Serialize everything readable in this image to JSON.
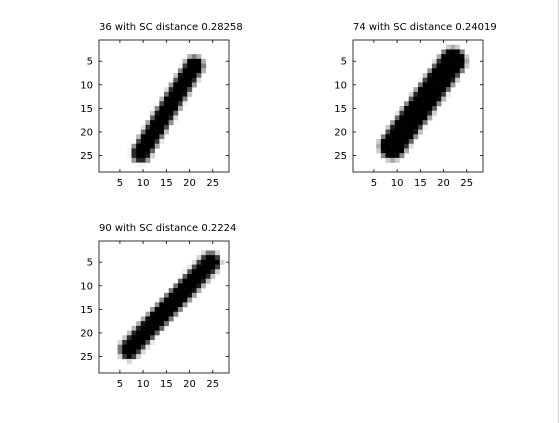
{
  "chart_data": [
    {
      "type": "heatmap",
      "title": "36 with SC distance 0.28258",
      "xlim": [
        0.5,
        28.5
      ],
      "ylim": [
        0.5,
        28.5
      ],
      "xticks": [
        5,
        10,
        15,
        20,
        25
      ],
      "yticks": [
        5,
        10,
        15,
        20,
        25
      ],
      "grid": false,
      "colormap": "gray-inverted",
      "stroke": {
        "start": [
          9.5,
          24.5
        ],
        "end": [
          21,
          6
        ],
        "width": 1.4
      }
    },
    {
      "type": "heatmap",
      "title": "74 with SC distance 0.24019",
      "xlim": [
        0.5,
        28.5
      ],
      "ylim": [
        0.5,
        28.5
      ],
      "xticks": [
        5,
        10,
        15,
        20,
        25
      ],
      "yticks": [
        5,
        10,
        15,
        20,
        25
      ],
      "grid": false,
      "colormap": "gray-inverted",
      "stroke": {
        "start": [
          9,
          23
        ],
        "end": [
          22,
          5
        ],
        "width": 2.2
      }
    },
    {
      "type": "heatmap",
      "title": "90 with SC distance 0.2224",
      "xlim": [
        0.5,
        28.5
      ],
      "ylim": [
        0.5,
        28.5
      ],
      "xticks": [
        5,
        10,
        15,
        20,
        25
      ],
      "yticks": [
        5,
        10,
        15,
        20,
        25
      ],
      "grid": false,
      "colormap": "gray-inverted",
      "stroke": {
        "start": [
          7,
          23.5
        ],
        "end": [
          24.5,
          5
        ],
        "width": 1.5
      }
    }
  ]
}
